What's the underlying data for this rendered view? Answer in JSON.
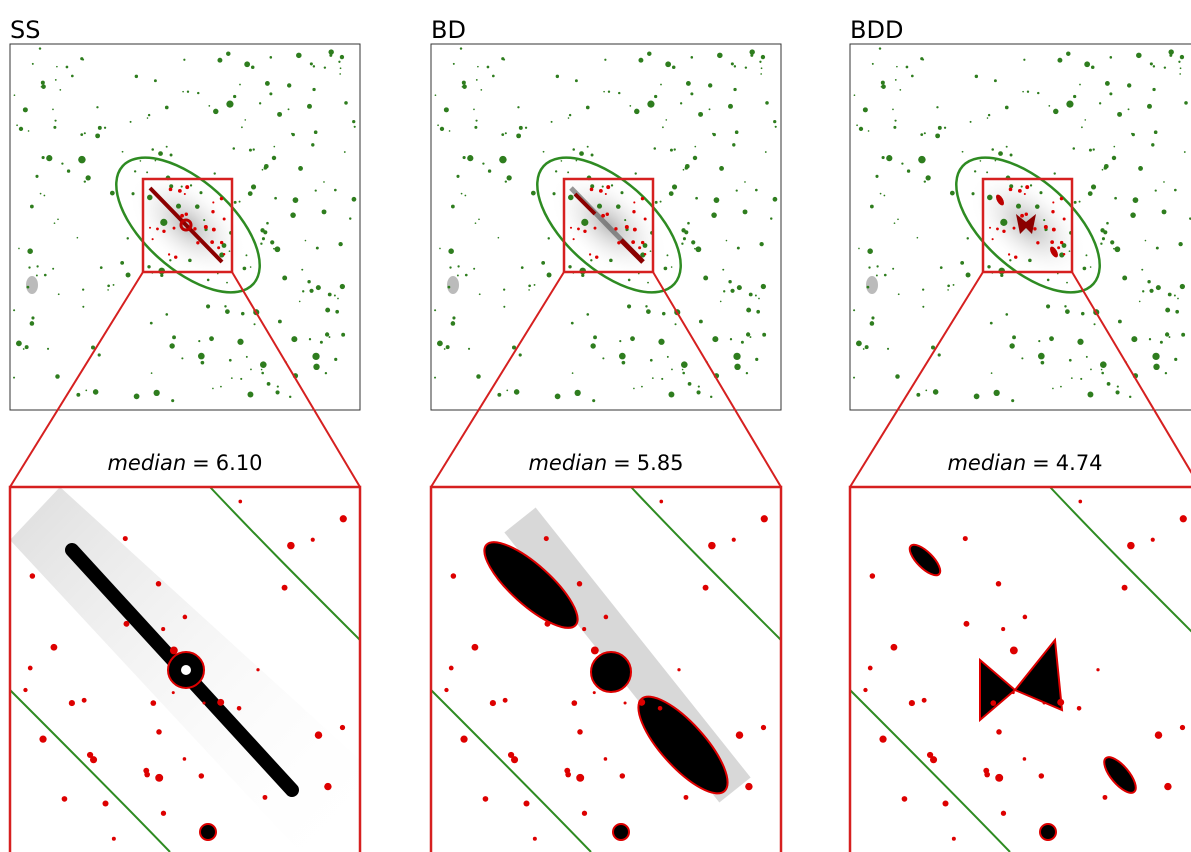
{
  "panels": [
    {
      "title": "SS",
      "stat_name": "median",
      "stat_value": "6.10"
    },
    {
      "title": "BD",
      "stat_name": "median",
      "stat_value": "5.85"
    },
    {
      "title": "BDD",
      "stat_name": "median",
      "stat_value": "4.74"
    }
  ],
  "equals_sign": "="
}
